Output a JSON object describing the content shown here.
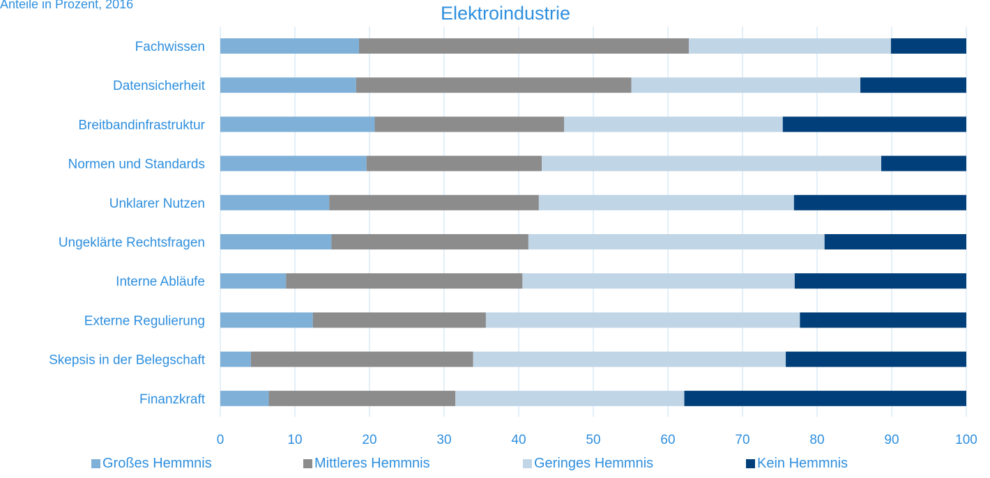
{
  "subtitle": "Anteile in Prozent, 2016",
  "chart_data": {
    "type": "bar",
    "orientation": "horizontal",
    "stacked": true,
    "title": "Elektroindustrie",
    "categories": [
      "Fachwissen",
      "Datensicherheit",
      "Breitbandinfrastruktur",
      "Normen und Standards",
      "Unklarer Nutzen",
      "Ungeklärte Rechtsfragen",
      "Interne Abläufe",
      "Externe Regulierung",
      "Skepsis in der Belegschaft",
      "Finanzkraft"
    ],
    "series": [
      {
        "name": "Großes Hemmnis",
        "color": "#7fb0d8",
        "values": [
          18.6,
          18.2,
          20.7,
          19.6,
          14.6,
          14.9,
          8.8,
          12.4,
          4.1,
          6.5
        ]
      },
      {
        "name": "Mittleres Hemmnis",
        "color": "#8c8c8c",
        "values": [
          44.2,
          36.9,
          25.4,
          23.5,
          28.1,
          26.4,
          31.7,
          23.2,
          29.8,
          25.0
        ]
      },
      {
        "name": "Geringes Hemmnis",
        "color": "#c0d5e6",
        "values": [
          27.1,
          30.7,
          29.3,
          45.5,
          34.2,
          39.7,
          36.5,
          42.1,
          41.9,
          30.7
        ]
      },
      {
        "name": "Kein Hemmnis",
        "color": "#003f7a",
        "values": [
          10.1,
          14.2,
          24.6,
          11.4,
          23.1,
          19.0,
          23.0,
          22.3,
          24.2,
          37.8
        ]
      }
    ],
    "xlim": [
      0,
      100
    ],
    "xticks": [
      "0",
      "10",
      "20",
      "30",
      "40",
      "50",
      "60",
      "70",
      "80",
      "90",
      "100"
    ],
    "grid": true,
    "legend_position": "bottom"
  }
}
